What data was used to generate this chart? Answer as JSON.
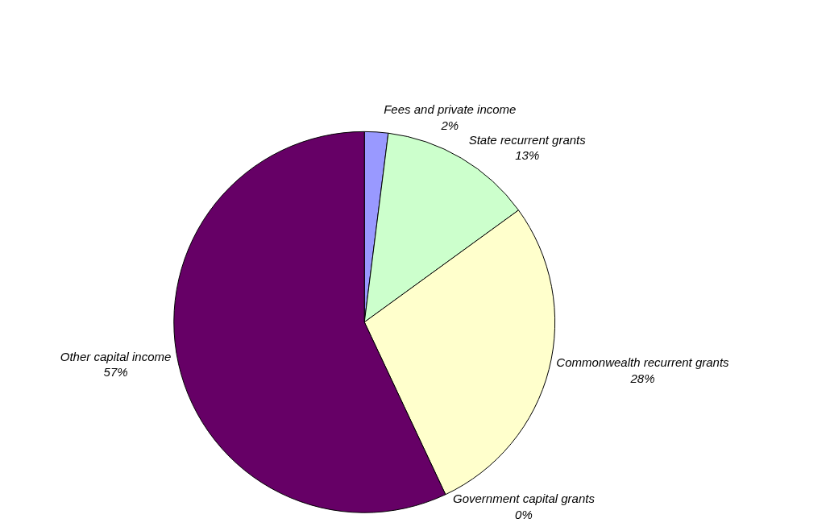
{
  "chart_data": {
    "type": "pie",
    "categories": [
      "Fees and private income",
      "State recurrent grants",
      "Commonwealth recurrent grants",
      "Government capital grants",
      "Other capital income"
    ],
    "values": [
      2,
      13,
      28,
      0,
      57
    ],
    "value_labels": [
      "2%",
      "13%",
      "28%",
      "0%",
      "57%"
    ],
    "colors": [
      "#9999ff",
      "#ccffcc",
      "#ffffcc",
      "#ccffff",
      "#660066"
    ],
    "legend": false
  }
}
